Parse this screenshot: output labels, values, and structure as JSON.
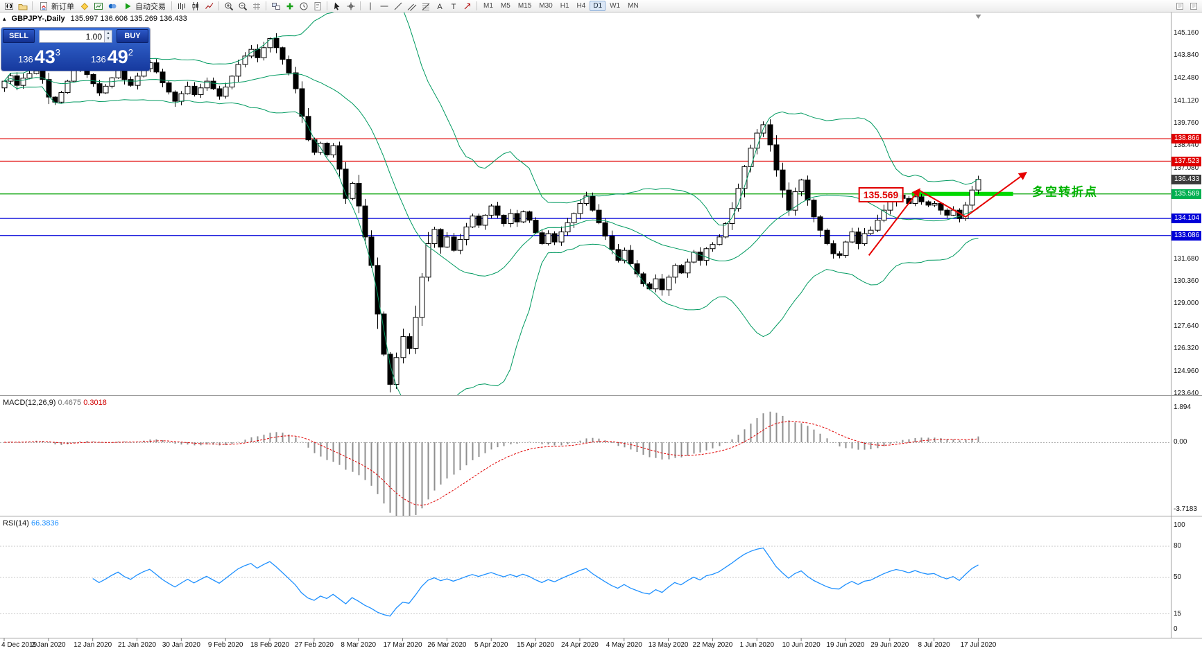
{
  "toolbar": {
    "new_order": "新订单",
    "autotrading": "自动交易",
    "timeframes": [
      "M1",
      "M5",
      "M15",
      "M30",
      "H1",
      "H4",
      "D1",
      "W1",
      "MN"
    ],
    "active_timeframe": "D1"
  },
  "chart": {
    "title": {
      "symbol_period": "GBPJPY-,Daily",
      "ohlc": "135.997 136.606 135.269 136.433"
    },
    "trade_panel": {
      "sell_label": "SELL",
      "buy_label": "BUY",
      "lot": "1.00",
      "sell_price": {
        "prefix": "136",
        "big": "43",
        "sup": "3"
      },
      "buy_price": {
        "prefix": "136",
        "big": "49",
        "sup": "2"
      }
    },
    "annotations": {
      "price_box": "135.569",
      "turning_point": "多空转折点"
    },
    "y_axis": {
      "labels": [
        145.16,
        143.84,
        142.48,
        141.12,
        139.76,
        138.44,
        137.08,
        131.68,
        130.36,
        129.0,
        127.64,
        126.32,
        124.96,
        123.64
      ],
      "badges": [
        {
          "text": "138.866",
          "color": "#e00000"
        },
        {
          "text": "137.523",
          "color": "#e00000"
        },
        {
          "text": "136.433",
          "color": "#3c3c3c"
        },
        {
          "text": "135.569",
          "color": "#00b050"
        },
        {
          "text": "134.104",
          "color": "#0000d8"
        },
        {
          "text": "133.086",
          "color": "#0000d8"
        }
      ]
    }
  },
  "macd_panel": {
    "name": "MACD(12,26,9)",
    "value": "0.4675",
    "signal_value": "0.3018",
    "axis": [
      {
        "text": "1.894",
        "v": 1.894
      },
      {
        "text": "0.00",
        "v": 0
      },
      {
        "text": "-3.7183",
        "v": -3.7183
      }
    ]
  },
  "rsi_panel": {
    "name": "RSI(14)",
    "value": "66.3836",
    "axis": [
      {
        "text": "100",
        "v": 100
      },
      {
        "text": "80",
        "v": 80
      },
      {
        "text": "50",
        "v": 50
      },
      {
        "text": "15",
        "v": 15
      },
      {
        "text": "0",
        "v": 0
      }
    ],
    "levels": [
      80,
      50,
      15
    ]
  },
  "chart_data": {
    "type": "candlestick",
    "symbol": "GBPJPY-",
    "timeframe": "Daily",
    "ohlc": {
      "open": 135.997,
      "high": 136.606,
      "low": 135.269,
      "close": 136.433
    },
    "closes": [
      142.3,
      142.62,
      142.05,
      142.48,
      142.75,
      142.92,
      142.4,
      141.35,
      141.05,
      141.62,
      142.3,
      142.95,
      143.25,
      142.7,
      142.15,
      141.6,
      142.0,
      142.5,
      142.95,
      142.4,
      142.05,
      142.6,
      143.05,
      143.4,
      142.85,
      142.2,
      141.65,
      141.1,
      141.55,
      142.0,
      141.5,
      141.9,
      142.3,
      141.85,
      141.4,
      141.95,
      142.6,
      143.3,
      143.8,
      144.2,
      143.7,
      144.3,
      144.85,
      144.3,
      143.6,
      142.8,
      141.85,
      140.2,
      138.8,
      138.05,
      138.6,
      137.9,
      138.45,
      137.05,
      135.3,
      136.2,
      134.85,
      133.0,
      131.3,
      128.4,
      126.0,
      124.2,
      125.8,
      127.05,
      126.35,
      128.2,
      130.6,
      132.6,
      133.45,
      132.4,
      133.0,
      132.2,
      132.85,
      133.6,
      134.25,
      133.7,
      134.3,
      134.85,
      134.3,
      133.8,
      134.4,
      133.9,
      134.5,
      134.0,
      133.25,
      132.6,
      133.2,
      132.7,
      133.3,
      133.85,
      134.4,
      135.0,
      135.45,
      134.6,
      133.85,
      133.05,
      132.25,
      131.6,
      132.2,
      131.4,
      130.8,
      130.2,
      129.9,
      130.5,
      129.85,
      130.6,
      131.3,
      130.85,
      131.5,
      132.1,
      131.6,
      132.3,
      132.55,
      133.0,
      133.8,
      134.7,
      135.9,
      137.2,
      138.3,
      139.2,
      139.7,
      138.5,
      137.0,
      135.8,
      134.6,
      135.7,
      136.4,
      135.2,
      134.2,
      133.4,
      132.6,
      132.0,
      131.9,
      132.7,
      133.3,
      132.6,
      133.2,
      133.4,
      134.0,
      134.6,
      135.1,
      135.5,
      135.3,
      135.0,
      135.4,
      135.1,
      134.9,
      135.0,
      134.6,
      134.3,
      134.6,
      134.1,
      134.9,
      135.8,
      136.43
    ],
    "bollinger": {
      "period": 20,
      "deviation": 2
    },
    "macd": {
      "fast": 12,
      "slow": 26,
      "signal": 9
    },
    "rsi": {
      "period": 14
    },
    "hlines": [
      {
        "price": 138.866,
        "color": "#e00000"
      },
      {
        "price": 137.523,
        "color": "#e00000"
      },
      {
        "price": 135.569,
        "color": "#00a000"
      },
      {
        "price": 134.104,
        "color": "#0000d8"
      },
      {
        "price": 133.086,
        "color": "#0000d8"
      }
    ],
    "highlight_zone": {
      "price": 135.569,
      "bar_start": 143.5,
      "bar_end": 159.5,
      "color": "#00d800"
    },
    "trend_arrows": [
      [
        136.7,
        131.9
      ],
      [
        144.6,
        135.8
      ],
      [
        152.0,
        134.2
      ],
      [
        161.4,
        136.8
      ]
    ],
    "price_box": {
      "bar": 138.6,
      "price": 135.52
    },
    "turning_point_pos": {
      "bar": 162.5,
      "price": 135.77
    },
    "x_labels": [
      {
        "text": "4 Dec 2019",
        "bar": 0
      },
      {
        "text": "2 Jan 2020",
        "bar": 7
      },
      {
        "text": "12 Jan 2020",
        "bar": 14
      },
      {
        "text": "21 Jan 2020",
        "bar": 21
      },
      {
        "text": "30 Jan 2020",
        "bar": 28
      },
      {
        "text": "9 Feb 2020",
        "bar": 35
      },
      {
        "text": "18 Feb 2020",
        "bar": 42
      },
      {
        "text": "27 Feb 2020",
        "bar": 49
      },
      {
        "text": "8 Mar 2020",
        "bar": 56
      },
      {
        "text": "17 Mar 2020",
        "bar": 63
      },
      {
        "text": "26 Mar 2020",
        "bar": 70
      },
      {
        "text": "5 Apr 2020",
        "bar": 77
      },
      {
        "text": "15 Apr 2020",
        "bar": 84
      },
      {
        "text": "24 Apr 2020",
        "bar": 91
      },
      {
        "text": "4 May 2020",
        "bar": 98
      },
      {
        "text": "13 May 2020",
        "bar": 105
      },
      {
        "text": "22 May 2020",
        "bar": 112
      },
      {
        "text": "1 Jun 2020",
        "bar": 119
      },
      {
        "text": "10 Jun 2020",
        "bar": 126
      },
      {
        "text": "19 Jun 2020",
        "bar": 133
      },
      {
        "text": "29 Jun 2020",
        "bar": 140
      },
      {
        "text": "8 Jul 2020",
        "bar": 147
      },
      {
        "text": "17 Jul 2020",
        "bar": 154
      }
    ]
  }
}
